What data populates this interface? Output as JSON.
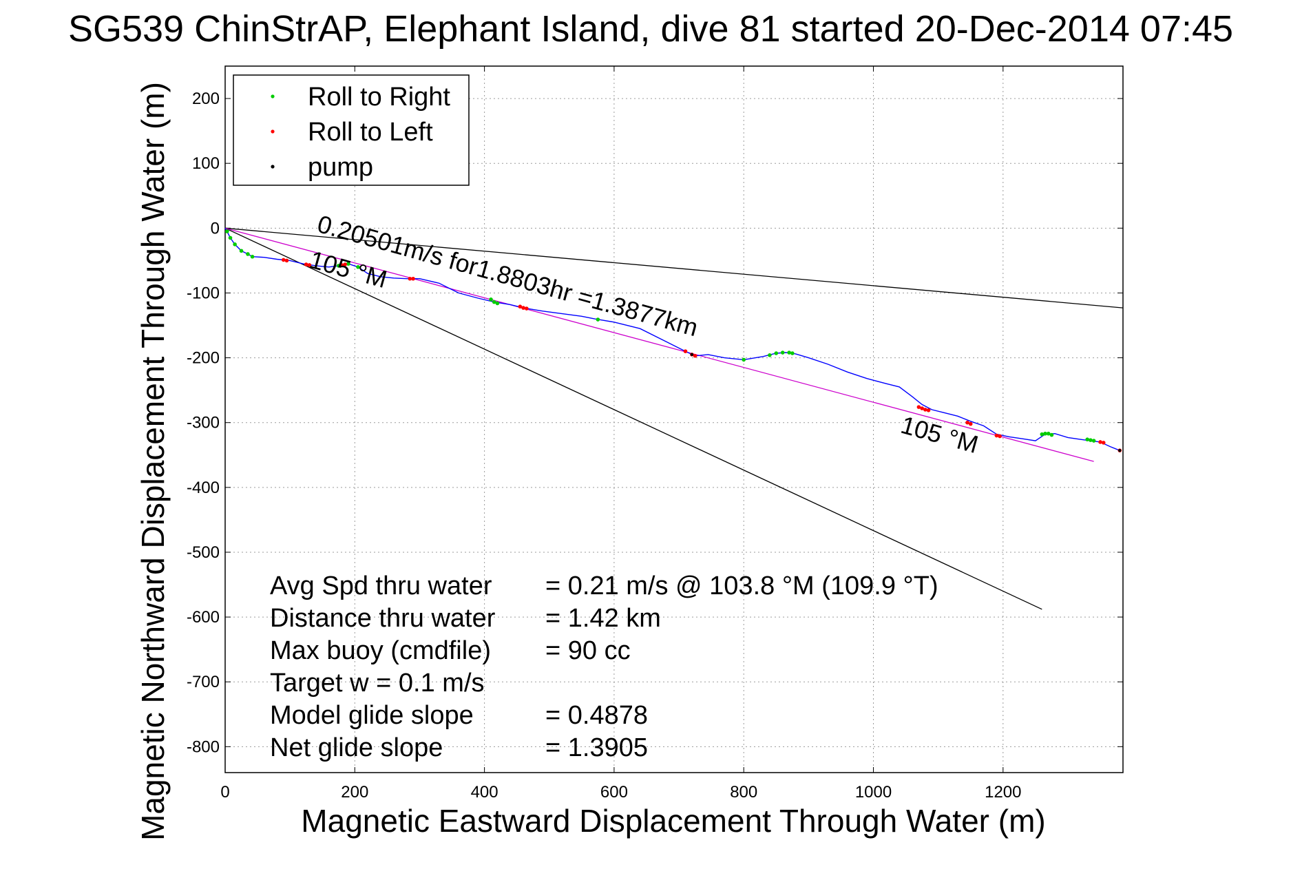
{
  "chart_data": {
    "type": "line",
    "title": "SG539 ChinStrAP, Elephant Island, dive 81 started 20-Dec-2014 07:45",
    "xlabel": "Magnetic Eastward Displacement Through Water (m)",
    "ylabel": "Magnetic Northward Displacement Through Water (m)",
    "xlim": [
      0,
      1385
    ],
    "ylim": [
      -840,
      250
    ],
    "x_ticks": [
      0,
      200,
      400,
      600,
      800,
      1000,
      1200
    ],
    "y_ticks": [
      200,
      100,
      0,
      -100,
      -200,
      -300,
      -400,
      -500,
      -600,
      -700,
      -800
    ],
    "grid": true,
    "legend_position": "top-left",
    "legend": [
      {
        "label": "Roll to Right",
        "color": "#00cc00"
      },
      {
        "label": "Roll to Left",
        "color": "#ff0000"
      },
      {
        "label": "pump",
        "color": "#000000"
      }
    ],
    "colors": {
      "track": "#0000ff",
      "heading_line": "#cc00cc",
      "bound_lines": "#000000",
      "roll_right": "#00cc00",
      "roll_left": "#ff0000",
      "pump": "#000000"
    },
    "track": {
      "x": [
        0,
        3,
        8,
        15,
        25,
        35,
        42,
        60,
        80,
        100,
        120,
        140,
        160,
        175,
        190,
        205,
        220,
        240,
        260,
        280,
        300,
        330,
        360,
        390,
        415,
        440,
        460,
        490,
        520,
        550,
        570,
        600,
        640,
        680,
        710,
        725,
        745,
        770,
        800,
        830,
        850,
        865,
        880,
        900,
        930,
        960,
        990,
        1020,
        1040,
        1060,
        1075,
        1090,
        1110,
        1130,
        1150,
        1170,
        1190,
        1210,
        1230,
        1250,
        1265,
        1280,
        1300,
        1320,
        1335,
        1350,
        1365,
        1380
      ],
      "y": [
        0,
        -5,
        -15,
        -25,
        -35,
        -40,
        -44,
        -45,
        -48,
        -50,
        -55,
        -58,
        -60,
        -58,
        -55,
        -60,
        -70,
        -75,
        -77,
        -78,
        -78,
        -85,
        -100,
        -108,
        -114,
        -118,
        -123,
        -128,
        -132,
        -136,
        -140,
        -145,
        -155,
        -175,
        -190,
        -197,
        -195,
        -200,
        -203,
        -198,
        -193,
        -192,
        -194,
        -200,
        -210,
        -222,
        -232,
        -240,
        -245,
        -260,
        -272,
        -280,
        -285,
        -290,
        -298,
        -305,
        -318,
        -322,
        -325,
        -328,
        -318,
        -317,
        -323,
        -326,
        -328,
        -330,
        -337,
        -343
      ]
    },
    "roll_right_points": {
      "x": [
        3,
        8,
        15,
        25,
        35,
        42,
        175,
        190,
        205,
        410,
        415,
        420,
        575,
        800,
        840,
        850,
        860,
        870,
        875,
        1260,
        1265,
        1270,
        1275,
        1330,
        1335,
        1340
      ],
      "y": [
        -5,
        -15,
        -25,
        -35,
        -40,
        -44,
        -58,
        -55,
        -60,
        -110,
        -114,
        -116,
        -141,
        -203,
        -196,
        -193,
        -192,
        -192,
        -193,
        -318,
        -317,
        -317,
        -319,
        -326,
        -327,
        -328
      ]
    },
    "roll_left_points": {
      "x": [
        90,
        95,
        125,
        130,
        180,
        185,
        285,
        290,
        455,
        460,
        465,
        710,
        720,
        725,
        1070,
        1075,
        1080,
        1085,
        1145,
        1150,
        1190,
        1195,
        1350,
        1355,
        1380
      ],
      "y": [
        -49,
        -50,
        -56,
        -57,
        -57,
        -56,
        -78,
        -78,
        -121,
        -123,
        -124,
        -190,
        -195,
        -197,
        -276,
        -278,
        -280,
        -281,
        -300,
        -302,
        -320,
        -321,
        -330,
        -331,
        -343
      ]
    },
    "pump_points": {
      "x": [
        720,
        1380
      ],
      "y": [
        -195,
        -343
      ]
    },
    "heading_line": {
      "x": [
        0,
        1340
      ],
      "y": [
        0,
        -360
      ]
    },
    "bound_lines": [
      {
        "x": [
          0,
          1385
        ],
        "y": [
          0,
          -123
        ]
      },
      {
        "x": [
          0,
          1260
        ],
        "y": [
          0,
          -588
        ]
      }
    ],
    "annotations": [
      {
        "text": "0.20501m/s for1.8803hr =1.3877km",
        "x": 140,
        "y": -5,
        "angle": 15.5
      },
      {
        "text": "105 °M",
        "x": 128,
        "y": -60,
        "angle": 15.5
      },
      {
        "text": "105 °M",
        "x": 1040,
        "y": -315,
        "angle": 15.5
      }
    ],
    "stats": [
      {
        "label": "Avg Spd thru water",
        "value": "=  0.21 m/s @ 103.8 °M (109.9 °T)"
      },
      {
        "label": "Distance thru water",
        "value": "=  1.42 km"
      },
      {
        "label": "Max buoy (cmdfile)",
        "value": "= 90 cc"
      },
      {
        "label": "Target w    = 0.1 m/s",
        "value": ""
      },
      {
        "label": "Model glide slope",
        "value": "= 0.4878"
      },
      {
        "label": "Net glide slope",
        "value": "= 1.3905"
      }
    ]
  }
}
